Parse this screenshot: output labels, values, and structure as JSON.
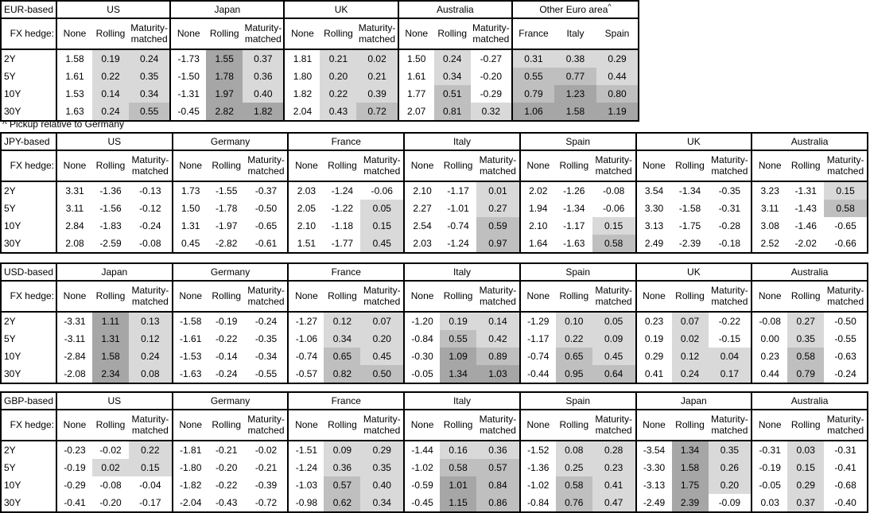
{
  "labels": {
    "fx_hedge": "FX hedge:"
  },
  "row_labels": [
    "2Y",
    "5Y",
    "10Y",
    "30Y"
  ],
  "footnote": "^ Pickup relative to Germany",
  "colors": {
    "background": "#ffffff",
    "text": "#000000",
    "border": "#000000",
    "shade_light": "#d9d9d9",
    "shade_medium": "#bfbfbf",
    "shade_dark": "#a6a6a6"
  },
  "shading_rule": {
    "light_min": 0,
    "medium_min": 0.5,
    "dark_min": 1.0,
    "note": "shading applied only to hedged pickup columns; negative values unshaded"
  },
  "tables": [
    {
      "base": "EUR-based",
      "groups": [
        {
          "name": "US",
          "cols": [
            "None",
            "Rolling",
            "Maturity-matched"
          ],
          "shaded": [
            false,
            true,
            true
          ],
          "rows": [
            [
              "1.58",
              "0.19",
              "0.24"
            ],
            [
              "1.61",
              "0.22",
              "0.35"
            ],
            [
              "1.53",
              "0.14",
              "0.34"
            ],
            [
              "1.63",
              "0.24",
              "0.55"
            ]
          ]
        },
        {
          "name": "Japan",
          "cols": [
            "None",
            "Rolling",
            "Maturity-matched"
          ],
          "shaded": [
            false,
            true,
            true
          ],
          "rows": [
            [
              "-1.73",
              "1.55",
              "0.37"
            ],
            [
              "-1.50",
              "1.78",
              "0.36"
            ],
            [
              "-1.31",
              "1.97",
              "0.40"
            ],
            [
              "-0.45",
              "2.82",
              "1.82"
            ]
          ]
        },
        {
          "name": "UK",
          "cols": [
            "None",
            "Rolling",
            "Maturity-matched"
          ],
          "shaded": [
            false,
            true,
            true
          ],
          "rows": [
            [
              "1.81",
              "0.21",
              "0.02"
            ],
            [
              "1.80",
              "0.20",
              "0.21"
            ],
            [
              "1.82",
              "0.22",
              "0.39"
            ],
            [
              "2.04",
              "0.43",
              "0.72"
            ]
          ]
        },
        {
          "name": "Australia",
          "cols": [
            "None",
            "Rolling",
            "Maturity-matched"
          ],
          "shaded": [
            false,
            true,
            true
          ],
          "rows": [
            [
              "1.50",
              "0.24",
              "-0.27"
            ],
            [
              "1.61",
              "0.34",
              "-0.20"
            ],
            [
              "1.77",
              "0.51",
              "-0.29"
            ],
            [
              "2.07",
              "0.81",
              "0.32"
            ]
          ]
        },
        {
          "name": "Other Euro area",
          "sup": "^",
          "cols": [
            "France",
            "Italy",
            "Spain"
          ],
          "shaded": [
            true,
            true,
            true
          ],
          "rows": [
            [
              "0.31",
              "0.38",
              "0.29"
            ],
            [
              "0.55",
              "0.77",
              "0.44"
            ],
            [
              "0.79",
              "1.23",
              "0.80"
            ],
            [
              "1.06",
              "1.58",
              "1.19"
            ]
          ]
        }
      ]
    },
    {
      "base": "JPY-based",
      "groups": [
        {
          "name": "US",
          "cols": [
            "None",
            "Rolling",
            "Maturity-matched"
          ],
          "shaded": [
            false,
            true,
            true
          ],
          "rows": [
            [
              "3.31",
              "-1.36",
              "-0.13"
            ],
            [
              "3.11",
              "-1.56",
              "-0.12"
            ],
            [
              "2.84",
              "-1.83",
              "-0.24"
            ],
            [
              "2.08",
              "-2.59",
              "-0.08"
            ]
          ]
        },
        {
          "name": "Germany",
          "cols": [
            "None",
            "Rolling",
            "Maturity-matched"
          ],
          "shaded": [
            false,
            true,
            true
          ],
          "rows": [
            [
              "1.73",
              "-1.55",
              "-0.37"
            ],
            [
              "1.50",
              "-1.78",
              "-0.50"
            ],
            [
              "1.31",
              "-1.97",
              "-0.65"
            ],
            [
              "0.45",
              "-2.82",
              "-0.61"
            ]
          ]
        },
        {
          "name": "France",
          "cols": [
            "None",
            "Rolling",
            "Maturity-matched"
          ],
          "shaded": [
            false,
            true,
            true
          ],
          "rows": [
            [
              "2.03",
              "-1.24",
              "-0.06"
            ],
            [
              "2.05",
              "-1.22",
              "0.05"
            ],
            [
              "2.10",
              "-1.18",
              "0.15"
            ],
            [
              "1.51",
              "-1.77",
              "0.45"
            ]
          ]
        },
        {
          "name": "Italy",
          "cols": [
            "None",
            "Rolling",
            "Maturity-matched"
          ],
          "shaded": [
            false,
            true,
            true
          ],
          "rows": [
            [
              "2.10",
              "-1.17",
              "0.01"
            ],
            [
              "2.27",
              "-1.01",
              "0.27"
            ],
            [
              "2.54",
              "-0.74",
              "0.59"
            ],
            [
              "2.03",
              "-1.24",
              "0.97"
            ]
          ]
        },
        {
          "name": "Spain",
          "cols": [
            "None",
            "Rolling",
            "Maturity-matched"
          ],
          "shaded": [
            false,
            true,
            true
          ],
          "rows": [
            [
              "2.02",
              "-1.26",
              "-0.08"
            ],
            [
              "1.94",
              "-1.34",
              "-0.06"
            ],
            [
              "2.10",
              "-1.17",
              "0.15"
            ],
            [
              "1.64",
              "-1.63",
              "0.58"
            ]
          ]
        },
        {
          "name": "UK",
          "cols": [
            "None",
            "Rolling",
            "Maturity-matched"
          ],
          "shaded": [
            false,
            true,
            true
          ],
          "rows": [
            [
              "3.54",
              "-1.34",
              "-0.35"
            ],
            [
              "3.30",
              "-1.58",
              "-0.31"
            ],
            [
              "3.13",
              "-1.75",
              "-0.28"
            ],
            [
              "2.49",
              "-2.39",
              "-0.18"
            ]
          ]
        },
        {
          "name": "Australia",
          "cols": [
            "None",
            "Rolling",
            "Maturity-matched"
          ],
          "shaded": [
            false,
            true,
            true
          ],
          "rows": [
            [
              "3.23",
              "-1.31",
              "0.15"
            ],
            [
              "3.11",
              "-1.43",
              "0.58"
            ],
            [
              "3.08",
              "-1.46",
              "-0.65"
            ],
            [
              "2.52",
              "-2.02",
              "-0.66"
            ]
          ]
        }
      ]
    },
    {
      "base": "USD-based",
      "groups": [
        {
          "name": "Japan",
          "cols": [
            "None",
            "Rolling",
            "Maturity-matched"
          ],
          "shaded": [
            false,
            true,
            true
          ],
          "rows": [
            [
              "-3.31",
              "1.11",
              "0.13"
            ],
            [
              "-3.11",
              "1.31",
              "0.12"
            ],
            [
              "-2.84",
              "1.58",
              "0.24"
            ],
            [
              "-2.08",
              "2.34",
              "0.08"
            ]
          ]
        },
        {
          "name": "Germany",
          "cols": [
            "None",
            "Rolling",
            "Maturity-matched"
          ],
          "shaded": [
            false,
            true,
            true
          ],
          "rows": [
            [
              "-1.58",
              "-0.19",
              "-0.24"
            ],
            [
              "-1.61",
              "-0.22",
              "-0.35"
            ],
            [
              "-1.53",
              "-0.14",
              "-0.34"
            ],
            [
              "-1.63",
              "-0.24",
              "-0.55"
            ]
          ]
        },
        {
          "name": "France",
          "cols": [
            "None",
            "Rolling",
            "Maturity-matched"
          ],
          "shaded": [
            false,
            true,
            true
          ],
          "rows": [
            [
              "-1.27",
              "0.12",
              "0.07"
            ],
            [
              "-1.06",
              "0.34",
              "0.20"
            ],
            [
              "-0.74",
              "0.65",
              "0.45"
            ],
            [
              "-0.57",
              "0.82",
              "0.50"
            ]
          ]
        },
        {
          "name": "Italy",
          "cols": [
            "None",
            "Rolling",
            "Maturity-matched"
          ],
          "shaded": [
            false,
            true,
            true
          ],
          "rows": [
            [
              "-1.20",
              "0.19",
              "0.14"
            ],
            [
              "-0.84",
              "0.55",
              "0.42"
            ],
            [
              "-0.30",
              "1.09",
              "0.89"
            ],
            [
              "-0.05",
              "1.34",
              "1.03"
            ]
          ]
        },
        {
          "name": "Spain",
          "cols": [
            "None",
            "Rolling",
            "Maturity-matched"
          ],
          "shaded": [
            false,
            true,
            true
          ],
          "rows": [
            [
              "-1.29",
              "0.10",
              "0.05"
            ],
            [
              "-1.17",
              "0.22",
              "0.09"
            ],
            [
              "-0.74",
              "0.65",
              "0.45"
            ],
            [
              "-0.44",
              "0.95",
              "0.64"
            ]
          ]
        },
        {
          "name": "UK",
          "cols": [
            "None",
            "Rolling",
            "Maturity-matched"
          ],
          "shaded": [
            false,
            true,
            true
          ],
          "rows": [
            [
              "0.23",
              "0.07",
              "-0.22"
            ],
            [
              "0.19",
              "0.02",
              "-0.15"
            ],
            [
              "0.29",
              "0.12",
              "0.04"
            ],
            [
              "0.41",
              "0.24",
              "0.17"
            ]
          ]
        },
        {
          "name": "Australia",
          "cols": [
            "None",
            "Rolling",
            "Maturity-matched"
          ],
          "shaded": [
            false,
            true,
            true
          ],
          "rows": [
            [
              "-0.08",
              "0.27",
              "-0.50"
            ],
            [
              "0.00",
              "0.35",
              "-0.55"
            ],
            [
              "0.23",
              "0.58",
              "-0.63"
            ],
            [
              "0.44",
              "0.79",
              "-0.24"
            ]
          ]
        }
      ]
    },
    {
      "base": "GBP-based",
      "groups": [
        {
          "name": "US",
          "cols": [
            "None",
            "Rolling",
            "Maturity-matched"
          ],
          "shaded": [
            false,
            true,
            true
          ],
          "rows": [
            [
              "-0.23",
              "-0.02",
              "0.22"
            ],
            [
              "-0.19",
              "0.02",
              "0.15"
            ],
            [
              "-0.29",
              "-0.08",
              "-0.04"
            ],
            [
              "-0.41",
              "-0.20",
              "-0.17"
            ]
          ]
        },
        {
          "name": "Germany",
          "cols": [
            "None",
            "Rolling",
            "Maturity-matched"
          ],
          "shaded": [
            false,
            true,
            true
          ],
          "rows": [
            [
              "-1.81",
              "-0.21",
              "-0.02"
            ],
            [
              "-1.80",
              "-0.20",
              "-0.21"
            ],
            [
              "-1.82",
              "-0.22",
              "-0.39"
            ],
            [
              "-2.04",
              "-0.43",
              "-0.72"
            ]
          ]
        },
        {
          "name": "France",
          "cols": [
            "None",
            "Rolling",
            "Maturity-matched"
          ],
          "shaded": [
            false,
            true,
            true
          ],
          "rows": [
            [
              "-1.51",
              "0.09",
              "0.29"
            ],
            [
              "-1.24",
              "0.36",
              "0.35"
            ],
            [
              "-1.03",
              "0.57",
              "0.40"
            ],
            [
              "-0.98",
              "0.62",
              "0.34"
            ]
          ]
        },
        {
          "name": "Italy",
          "cols": [
            "None",
            "Rolling",
            "Maturity-matched"
          ],
          "shaded": [
            false,
            true,
            true
          ],
          "rows": [
            [
              "-1.44",
              "0.16",
              "0.36"
            ],
            [
              "-1.02",
              "0.58",
              "0.57"
            ],
            [
              "-0.59",
              "1.01",
              "0.84"
            ],
            [
              "-0.45",
              "1.15",
              "0.86"
            ]
          ]
        },
        {
          "name": "Spain",
          "cols": [
            "None",
            "Rolling",
            "Maturity-matched"
          ],
          "shaded": [
            false,
            true,
            true
          ],
          "rows": [
            [
              "-1.52",
              "0.08",
              "0.28"
            ],
            [
              "-1.36",
              "0.25",
              "0.23"
            ],
            [
              "-1.02",
              "0.58",
              "0.41"
            ],
            [
              "-0.84",
              "0.76",
              "0.47"
            ]
          ]
        },
        {
          "name": "Japan",
          "cols": [
            "None",
            "Rolling",
            "Maturity-matched"
          ],
          "shaded": [
            false,
            true,
            true
          ],
          "rows": [
            [
              "-3.54",
              "1.34",
              "0.35"
            ],
            [
              "-3.30",
              "1.58",
              "0.26"
            ],
            [
              "-3.13",
              "1.75",
              "0.20"
            ],
            [
              "-2.49",
              "2.39",
              "-0.09"
            ]
          ]
        },
        {
          "name": "Australia",
          "cols": [
            "None",
            "Rolling",
            "Maturity-matched"
          ],
          "shaded": [
            false,
            true,
            true
          ],
          "rows": [
            [
              "-0.31",
              "0.03",
              "-0.31"
            ],
            [
              "-0.19",
              "0.15",
              "-0.41"
            ],
            [
              "-0.05",
              "0.29",
              "-0.68"
            ],
            [
              "0.03",
              "0.37",
              "-0.40"
            ]
          ]
        }
      ]
    }
  ]
}
